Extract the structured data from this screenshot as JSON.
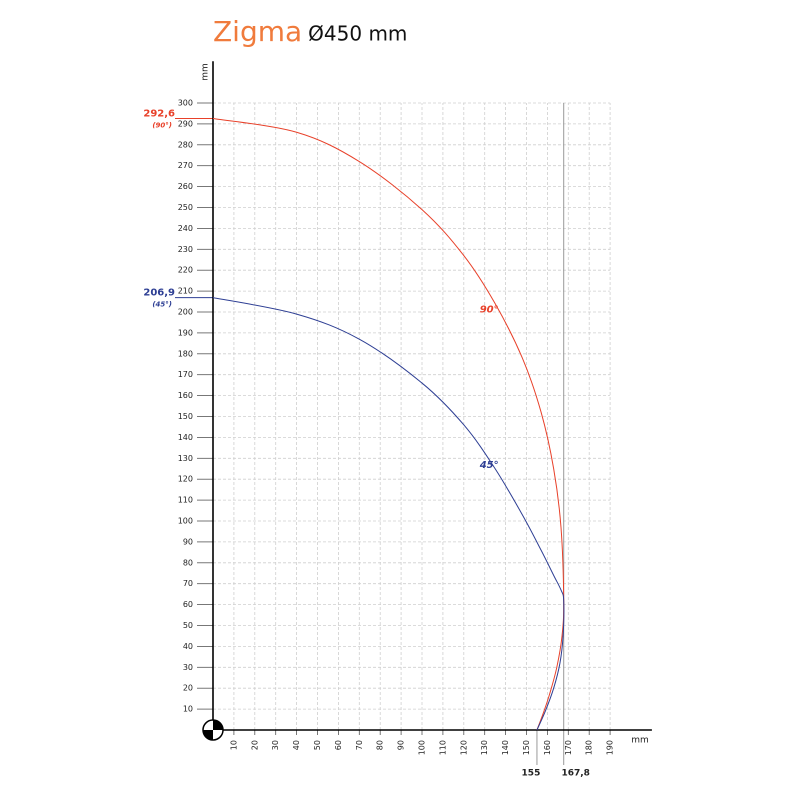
{
  "chart_data": {
    "type": "line",
    "title": "Zigma",
    "subtitle": "Ø450 mm",
    "x_label": "mm",
    "y_label": "mm",
    "xlim": [
      0,
      210
    ],
    "ylim": [
      0,
      320
    ],
    "xticks": [
      10,
      20,
      30,
      40,
      50,
      60,
      70,
      80,
      90,
      100,
      110,
      120,
      130,
      140,
      150,
      160,
      170,
      180,
      190
    ],
    "yticks": [
      10,
      20,
      30,
      40,
      50,
      60,
      70,
      80,
      90,
      100,
      110,
      120,
      130,
      140,
      150,
      160,
      170,
      180,
      190,
      200,
      210,
      220,
      230,
      240,
      250,
      260,
      270,
      280,
      290,
      300
    ],
    "grid": true,
    "x_markers": [
      {
        "value": 155,
        "label": "155"
      },
      {
        "value": 167.8,
        "label": "167,8"
      }
    ],
    "y_markers": [
      {
        "value": 292.6,
        "label": "292,6",
        "note": "(90°)",
        "color": "#e8412a"
      },
      {
        "value": 206.9,
        "label": "206,9",
        "note": "(45°)",
        "color": "#2e3f94"
      }
    ],
    "series": [
      {
        "name": "90°",
        "color": "#e8412a",
        "x": [
          0,
          40,
          70,
          100,
          120,
          135,
          148,
          157,
          163,
          166.5,
          167.8,
          167,
          164.5,
          161,
          158,
          155
        ],
        "values": [
          292.6,
          286,
          272,
          249,
          227,
          204,
          178,
          152,
          125,
          97,
          62,
          45,
          30,
          17,
          8,
          0
        ]
      },
      {
        "name": "45°",
        "color": "#2e3f94",
        "x": [
          0,
          40,
          70,
          100,
          120,
          135,
          148,
          157,
          163,
          166.5,
          167.8,
          167.5,
          166,
          163,
          159,
          155
        ],
        "values": [
          206.9,
          199,
          187,
          166,
          146,
          125,
          103,
          86,
          74,
          67,
          62,
          45,
          32,
          20,
          9,
          0
        ]
      }
    ]
  }
}
